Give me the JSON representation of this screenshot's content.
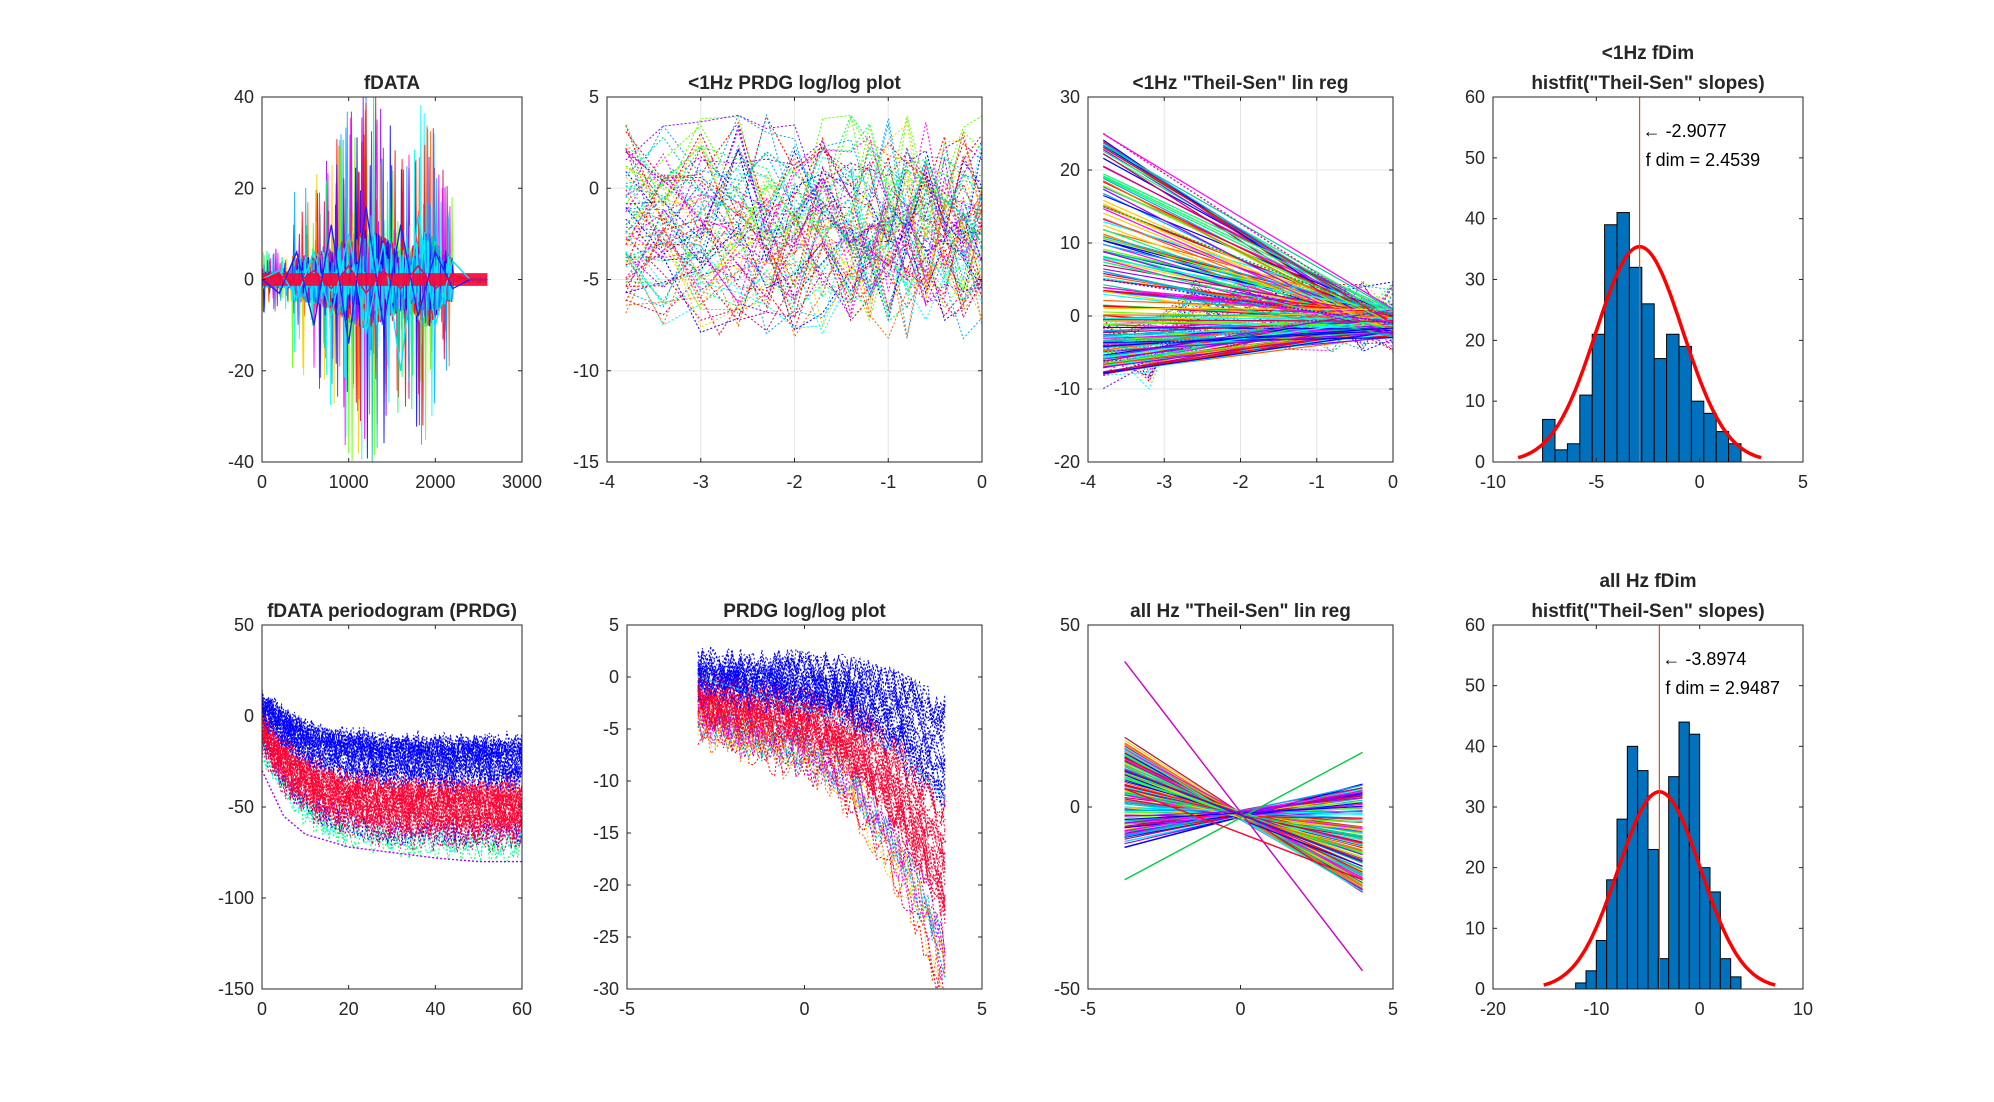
{
  "figure": {
    "background": "#ffffff"
  },
  "chart_data": [
    {
      "type": "line",
      "title": [
        "fDATA"
      ],
      "xlim": [
        0,
        3000
      ],
      "ylim": [
        -40,
        40
      ],
      "xticks": [
        0,
        1000,
        2000,
        3000
      ],
      "yticks": [
        -40,
        -20,
        0,
        20,
        40
      ],
      "grid": false,
      "series_style": "dense overlapping multicolor time-series traces, final trace red",
      "series": [
        {
          "name": "",
          "color": "#00e5ff",
          "x": [
            0,
            200,
            400,
            600,
            800,
            1000,
            1200,
            1400,
            1600,
            1800,
            2000,
            2200,
            2400,
            2600
          ],
          "y": [
            0,
            2,
            -4,
            6,
            -8,
            10,
            -12,
            8,
            -20,
            14,
            -10,
            4,
            0,
            0
          ]
        },
        {
          "name": "",
          "color": "#2020ff",
          "x": [
            0,
            200,
            400,
            600,
            800,
            1000,
            1200,
            1400,
            1600,
            1800,
            2000,
            2200,
            2400,
            2600
          ],
          "y": [
            0,
            -3,
            6,
            -10,
            12,
            -14,
            16,
            -10,
            12,
            -8,
            6,
            -2,
            0,
            0
          ]
        },
        {
          "name": "",
          "color": "#ff0033",
          "x": [
            0,
            200,
            400,
            600,
            800,
            1000,
            1200,
            1400,
            1600,
            1800,
            2000,
            2200,
            2400,
            2600
          ],
          "y": [
            0,
            1,
            -1,
            2,
            -2,
            3,
            -3,
            2,
            -2,
            3,
            -2,
            1,
            0,
            0
          ]
        }
      ]
    },
    {
      "type": "line",
      "title": [
        "<1Hz PRDG log/log plot"
      ],
      "xlim": [
        -4,
        0
      ],
      "ylim": [
        -15,
        5
      ],
      "xticks": [
        -4,
        -3,
        -2,
        -1,
        0
      ],
      "yticks": [
        -15,
        -10,
        -5,
        0,
        5
      ],
      "grid": true,
      "series_style": "dotted multicolor lines",
      "series": [
        {
          "name": "",
          "color": "#cc00cc",
          "x": [
            -3.8,
            -3.3,
            -2.8,
            -2.3,
            -1.8,
            -1.3,
            -0.8,
            -0.3,
            0
          ],
          "y": [
            2,
            0,
            -3,
            -6,
            -1,
            -3,
            -5,
            -2,
            -4
          ]
        },
        {
          "name": "",
          "color": "#00cc88",
          "x": [
            -3.8,
            -3.3,
            -2.8,
            -2.3,
            -1.8,
            -1.3,
            -0.8,
            -0.3,
            0
          ],
          "y": [
            -2,
            1,
            -1,
            2,
            0,
            -4,
            1,
            -1,
            -3
          ]
        },
        {
          "name": "",
          "color": "#ff3366",
          "x": [
            -3.8,
            -3.3,
            -2.8,
            -2.3,
            -1.8,
            -1.3,
            -0.8,
            -0.3,
            0
          ],
          "y": [
            -5,
            -3,
            -8,
            -4,
            -2,
            -6,
            -3,
            -7,
            -5
          ]
        }
      ]
    },
    {
      "type": "line",
      "title": [
        "<1Hz \"Theil-Sen\" lin reg"
      ],
      "xlim": [
        -4,
        0
      ],
      "ylim": [
        -20,
        30
      ],
      "xticks": [
        -4,
        -3,
        -2,
        -1,
        0
      ],
      "yticks": [
        -20,
        -10,
        0,
        10,
        20,
        30
      ],
      "grid": true,
      "series_style": "fan of regression lines converging near x=0",
      "series": [
        {
          "name": "",
          "color": "#ff00aa",
          "x": [
            -3.8,
            0
          ],
          "y": [
            25,
            -1
          ]
        },
        {
          "name": "",
          "color": "#00aa44",
          "x": [
            -3.8,
            0
          ],
          "y": [
            15,
            0
          ]
        },
        {
          "name": "",
          "color": "#2020ff",
          "x": [
            -3.8,
            0
          ],
          "y": [
            5,
            -1
          ]
        },
        {
          "name": "",
          "color": "#00e5ff",
          "x": [
            -3.8,
            0
          ],
          "y": [
            -5,
            1
          ]
        }
      ]
    },
    {
      "type": "bar",
      "title": [
        "<1Hz fDim",
        "histfit(\"Theil-Sen\" slopes)"
      ],
      "xlim": [
        -10,
        5
      ],
      "ylim": [
        0,
        60
      ],
      "xticks": [
        -10,
        -5,
        0,
        5
      ],
      "yticks": [
        0,
        10,
        20,
        30,
        40,
        50,
        60
      ],
      "grid": false,
      "bin_edges": [
        -7.6,
        -7.0,
        -6.4,
        -5.8,
        -5.2,
        -4.6,
        -4.0,
        -3.4,
        -2.8,
        -2.2,
        -1.6,
        -1.0,
        -0.4,
        0.2,
        0.8,
        1.4,
        2.0
      ],
      "values": [
        7,
        2,
        3,
        11,
        21,
        39,
        41,
        32,
        26,
        17,
        21,
        19,
        10,
        8,
        5,
        3
      ],
      "bar_color": "#0072BD",
      "fit": {
        "mean": -2.9077,
        "std": 2.1,
        "peak": 35.4,
        "color": "#ff0000"
      },
      "vline": {
        "x": -2.9077,
        "color": "#D95319"
      },
      "annotation": [
        "← -2.9077",
        "f dim = 2.4539"
      ]
    },
    {
      "type": "line",
      "title": [
        "fDATA periodogram (PRDG)"
      ],
      "xlim": [
        0,
        60
      ],
      "ylim": [
        -150,
        50
      ],
      "xticks": [
        0,
        20,
        40,
        60
      ],
      "yticks": [
        -150,
        -100,
        -50,
        0,
        50
      ],
      "grid": false,
      "series_style": "dense dotted multicolor periodogram curves",
      "series": [
        {
          "name": "",
          "color": "#2020ff",
          "x": [
            0,
            5,
            10,
            20,
            30,
            40,
            50,
            60
          ],
          "y": [
            10,
            -5,
            -12,
            -20,
            -24,
            -27,
            -28,
            -28
          ]
        },
        {
          "name": "",
          "color": "#ff0033",
          "x": [
            0,
            5,
            10,
            20,
            30,
            40,
            50,
            60
          ],
          "y": [
            -10,
            -30,
            -40,
            -48,
            -52,
            -55,
            -56,
            -57
          ]
        },
        {
          "name": "",
          "color": "#aa00ff",
          "x": [
            0,
            5,
            10,
            20,
            30,
            40,
            50,
            60
          ],
          "y": [
            -30,
            -55,
            -65,
            -72,
            -75,
            -78,
            -80,
            -80
          ]
        }
      ]
    },
    {
      "type": "line",
      "title": [
        "PRDG log/log plot"
      ],
      "xlim": [
        -5,
        5
      ],
      "ylim": [
        -30,
        5
      ],
      "xticks": [
        -5,
        0,
        5
      ],
      "yticks": [
        -30,
        -25,
        -20,
        -15,
        -10,
        -5,
        0,
        5
      ],
      "grid": false,
      "series_style": "dense dotted multicolor lines",
      "series": [
        {
          "name": "",
          "color": "#2020ff",
          "x": [
            -3,
            -2,
            -1,
            0,
            1,
            2,
            3,
            4
          ],
          "y": [
            1,
            1,
            0.5,
            0,
            -0.5,
            -1.5,
            -3,
            -5
          ]
        },
        {
          "name": "",
          "color": "#00e5ff",
          "x": [
            -3,
            -2,
            -1,
            0,
            1,
            2,
            3,
            4
          ],
          "y": [
            0,
            -1,
            -2,
            -3,
            -4,
            -6,
            -8,
            -12
          ]
        },
        {
          "name": "",
          "color": "#ff0033",
          "x": [
            -3,
            -2,
            -1,
            0,
            1,
            2,
            3,
            4
          ],
          "y": [
            -2,
            -3,
            -4,
            -5,
            -6,
            -8,
            -11,
            -16
          ]
        }
      ]
    },
    {
      "type": "line",
      "title": [
        "all Hz \"Theil-Sen\" lin reg"
      ],
      "xlim": [
        -5,
        5
      ],
      "ylim": [
        -50,
        50
      ],
      "xticks": [
        -5,
        0,
        5
      ],
      "yticks": [
        -50,
        0,
        50
      ],
      "grid": false,
      "series_style": "fan of regression lines crossing near x=0",
      "series": [
        {
          "name": "",
          "color": "#cc00cc",
          "x": [
            -3.8,
            4
          ],
          "y": [
            40,
            -45
          ]
        },
        {
          "name": "",
          "color": "#00cc44",
          "x": [
            -3.8,
            4
          ],
          "y": [
            -20,
            15
          ]
        },
        {
          "name": "",
          "color": "#2020ff",
          "x": [
            -3.8,
            4
          ],
          "y": [
            10,
            -15
          ]
        },
        {
          "name": "",
          "color": "#ff0033",
          "x": [
            -3.8,
            4
          ],
          "y": [
            5,
            -20
          ]
        }
      ]
    },
    {
      "type": "bar",
      "title": [
        "all Hz fDim",
        "histfit(\"Theil-Sen\" slopes)"
      ],
      "xlim": [
        -20,
        10
      ],
      "ylim": [
        0,
        60
      ],
      "xticks": [
        -20,
        -10,
        0,
        10
      ],
      "yticks": [
        0,
        10,
        20,
        30,
        40,
        50,
        60
      ],
      "grid": false,
      "bin_edges": [
        -12.0,
        -11.0,
        -10.0,
        -9.0,
        -8.0,
        -7.0,
        -6.0,
        -5.0,
        -4.0,
        -3.0,
        -2.0,
        -1.0,
        0.0,
        1.0,
        2.0,
        3.0,
        4.0
      ],
      "values": [
        1,
        3,
        8,
        18,
        28,
        40,
        36,
        23,
        5,
        35,
        44,
        42,
        20,
        16,
        5,
        2
      ],
      "bar_color": "#0072BD",
      "fit": {
        "mean": -3.8974,
        "std": 4.0,
        "peak": 32.5,
        "color": "#ff0000"
      },
      "vline": {
        "x": -3.8974,
        "color": "#D95319"
      },
      "annotation": [
        "← -3.8974",
        "f dim = 2.9487"
      ]
    }
  ]
}
